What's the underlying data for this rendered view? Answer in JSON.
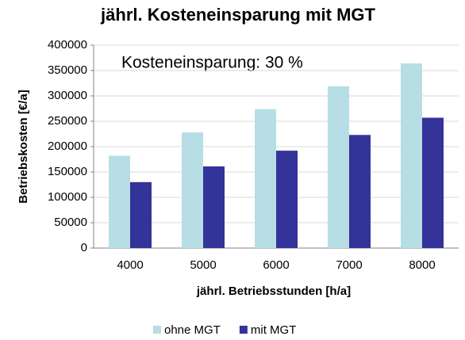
{
  "chart_data": {
    "type": "bar",
    "title": "jährl. Kosteneinsparung mit MGT",
    "annotation": "Kosteneinsparung: 30 %",
    "x_label": "jährl. Betriebsstunden [h/a]",
    "y_label": "Betriebskosten [€/a]",
    "categories": [
      "4000",
      "5000",
      "6000",
      "7000",
      "8000"
    ],
    "series": [
      {
        "name": "ohne MGT",
        "color": "#b7dee4",
        "values": [
          182000,
          228000,
          274000,
          319000,
          364000
        ]
      },
      {
        "name": "mit MGT",
        "color": "#333399",
        "values": [
          130000,
          161000,
          192000,
          223000,
          257000
        ]
      }
    ],
    "ylim": [
      0,
      400000
    ],
    "yticks": [
      0,
      50000,
      100000,
      150000,
      200000,
      250000,
      300000,
      350000,
      400000
    ],
    "grid": true,
    "legend": "bottom"
  }
}
